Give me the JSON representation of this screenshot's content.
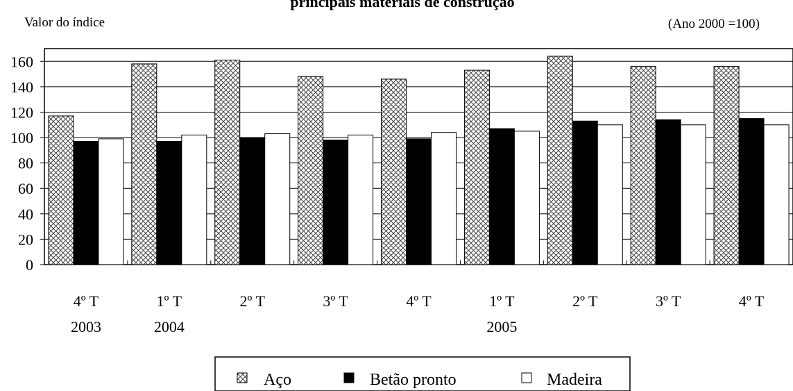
{
  "chart_data": {
    "type": "bar",
    "title": "principais materiais de construção",
    "ylabel": "Valor do índice",
    "note": "(Ano 2000 =100)",
    "categories": [
      "4º T",
      "1º T",
      "2º T",
      "3º T",
      "4º T",
      "1º T",
      "2º T",
      "3º T",
      "4º T"
    ],
    "year_labels": [
      {
        "label": "2003",
        "category_index": 0
      },
      {
        "label": "2004",
        "category_index": 1
      },
      {
        "label": "2005",
        "category_index": 5
      }
    ],
    "ylim": [
      0,
      170
    ],
    "yticks": [
      0,
      20,
      40,
      60,
      80,
      100,
      120,
      140,
      160
    ],
    "grid": true,
    "legend_position": "bottom",
    "series": [
      {
        "name": "Aço",
        "values": [
          117,
          158,
          161,
          148,
          146,
          153,
          164,
          156,
          156
        ]
      },
      {
        "name": "Betão pronto",
        "values": [
          97,
          97,
          100,
          98,
          99,
          107,
          113,
          114,
          115
        ]
      },
      {
        "name": "Madeira",
        "values": [
          99,
          102,
          103,
          102,
          104,
          105,
          110,
          110,
          110
        ]
      }
    ]
  },
  "legend_symbols": [
    "▨",
    "■",
    "□"
  ]
}
